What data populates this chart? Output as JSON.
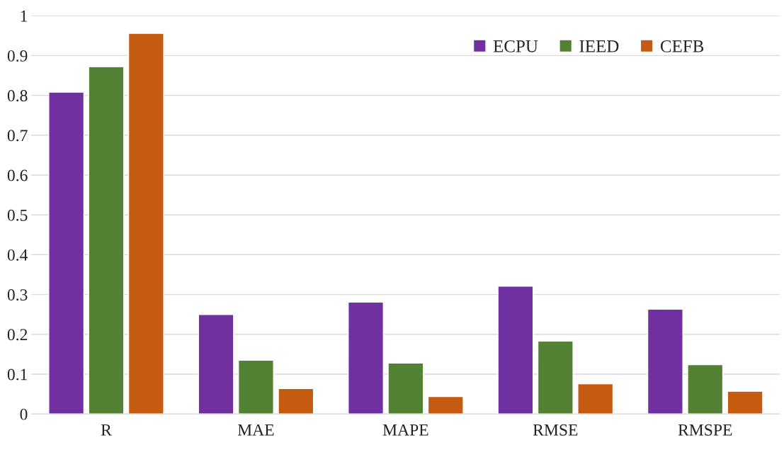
{
  "chart_data": {
    "type": "bar",
    "categories": [
      "R",
      "MAE",
      "MAPE",
      "RMSE",
      "RMSPE"
    ],
    "series": [
      {
        "name": "ECPU",
        "color": "#7030a0",
        "values": [
          0.808,
          0.25,
          0.281,
          0.321,
          0.263
        ]
      },
      {
        "name": "IEED",
        "color": "#548235",
        "values": [
          0.872,
          0.135,
          0.128,
          0.183,
          0.124
        ]
      },
      {
        "name": "CEFB",
        "color": "#c55a11",
        "values": [
          0.956,
          0.064,
          0.044,
          0.076,
          0.057
        ]
      }
    ],
    "ylim": [
      0,
      1
    ],
    "yticks": [
      0,
      {
        "value": 0.1,
        "label": "0.1"
      },
      {
        "value": 0.2,
        "label": "0.2"
      },
      {
        "value": 0.3,
        "label": "0.3"
      },
      {
        "value": 0.4,
        "label": "0.4"
      },
      {
        "value": 0.5,
        "label": "0.5"
      },
      {
        "value": 0.6,
        "label": "0.6"
      },
      {
        "value": 0.7,
        "label": "0.7"
      },
      {
        "value": 0.8,
        "label": "0.8"
      },
      {
        "value": 0.9,
        "label": "0.9"
      },
      1
    ],
    "grid": "y",
    "legend": "top right"
  }
}
